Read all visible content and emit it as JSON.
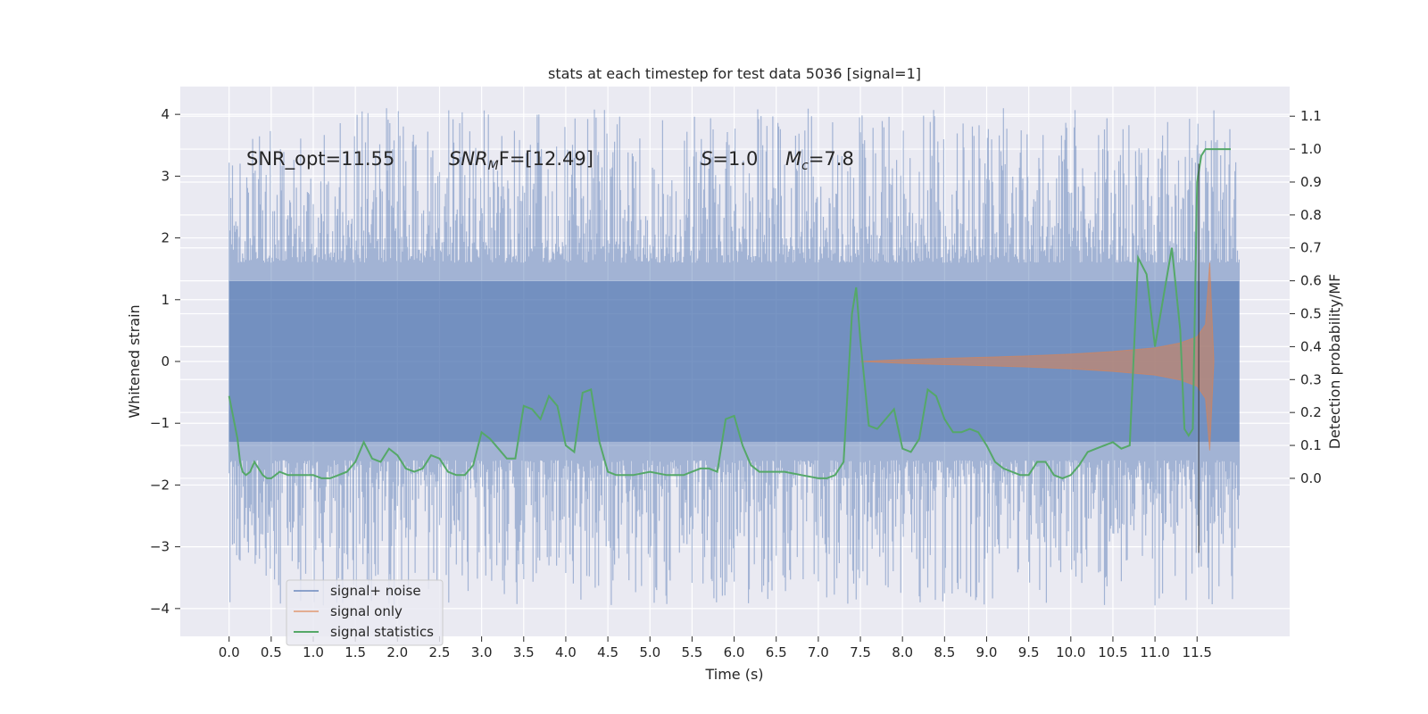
{
  "chart_data": {
    "type": "line",
    "title": "stats at each timestep for test data 5036 [signal=1]",
    "xlabel": "Time (s)",
    "ylabel": "Whitened strain",
    "ylabel_right": "Detection probability/MF",
    "xlim": [
      -0.58,
      12.6
    ],
    "ylim": [
      -4.45,
      4.45
    ],
    "ylim_right": [
      -0.48,
      1.19
    ],
    "x_ticks": [
      "0.0",
      "0.5",
      "1.0",
      "1.5",
      "2.0",
      "2.5",
      "3.0",
      "3.5",
      "4.0",
      "4.5",
      "5.0",
      "5.5",
      "6.0",
      "6.5",
      "7.0",
      "7.5",
      "8.0",
      "8.5",
      "9.0",
      "9.5",
      "10.0",
      "10.5",
      "11.0",
      "11.5"
    ],
    "y_ticks": [
      "4",
      "3",
      "2",
      "1",
      "0",
      "−1",
      "−2",
      "−3",
      "−4"
    ],
    "y_ticks_right": [
      "1.1",
      "1.0",
      "0.9",
      "0.8",
      "0.7",
      "0.6",
      "0.5",
      "0.4",
      "0.3",
      "0.2",
      "0.1",
      "0.0"
    ],
    "grid": true,
    "legend_position": "lower-left",
    "annotations": {
      "snr_opt": "SNR_opt=11.55",
      "snr_mf_sym": "SNR",
      "snr_mf_sub": "M",
      "snr_mf_rest": "F=[12.49]",
      "s_sym": "S",
      "s_rest": "=1.0",
      "mc_sym": "M",
      "mc_sub": "c",
      "mc_rest": "=7.8"
    },
    "series": [
      {
        "name": "signal+ noise",
        "color": "#4c72b0",
        "kind": "noise-band",
        "x_range": [
          0.0,
          12.0
        ],
        "core_amplitude": 1.3,
        "peak_min": -3.95,
        "peak_max": 4.1
      },
      {
        "name": "signal only",
        "color": "#dd8452",
        "kind": "chirp-envelope",
        "points": [
          [
            7.5,
            0.0
          ],
          [
            8.0,
            0.03
          ],
          [
            8.5,
            0.05
          ],
          [
            9.0,
            0.07
          ],
          [
            9.5,
            0.09
          ],
          [
            10.0,
            0.12
          ],
          [
            10.5,
            0.16
          ],
          [
            11.0,
            0.22
          ],
          [
            11.3,
            0.3
          ],
          [
            11.5,
            0.4
          ],
          [
            11.6,
            0.6
          ],
          [
            11.65,
            1.6
          ],
          [
            11.7,
            0.0
          ]
        ]
      },
      {
        "name": "signal statistics",
        "color": "#55a868",
        "kind": "line",
        "x": [
          0.0,
          0.1,
          0.13,
          0.16,
          0.2,
          0.25,
          0.3,
          0.35,
          0.4,
          0.45,
          0.5,
          0.55,
          0.6,
          0.7,
          0.8,
          0.9,
          1.0,
          1.1,
          1.2,
          1.3,
          1.4,
          1.5,
          1.6,
          1.7,
          1.8,
          1.9,
          2.0,
          2.1,
          2.2,
          2.3,
          2.4,
          2.5,
          2.6,
          2.7,
          2.8,
          2.9,
          3.0,
          3.1,
          3.2,
          3.3,
          3.4,
          3.5,
          3.6,
          3.7,
          3.8,
          3.9,
          4.0,
          4.1,
          4.2,
          4.3,
          4.4,
          4.5,
          4.6,
          4.7,
          4.8,
          5.0,
          5.2,
          5.4,
          5.5,
          5.6,
          5.7,
          5.8,
          5.9,
          6.0,
          6.1,
          6.2,
          6.3,
          6.4,
          6.6,
          6.8,
          7.0,
          7.1,
          7.2,
          7.3,
          7.4,
          7.45,
          7.5,
          7.6,
          7.7,
          7.8,
          7.9,
          8.0,
          8.1,
          8.2,
          8.3,
          8.4,
          8.5,
          8.6,
          8.7,
          8.8,
          8.9,
          9.0,
          9.1,
          9.2,
          9.4,
          9.5,
          9.6,
          9.7,
          9.8,
          9.9,
          10.0,
          10.1,
          10.2,
          10.3,
          10.4,
          10.5,
          10.6,
          10.7,
          10.8,
          10.9,
          11.0,
          11.1,
          11.2,
          11.3,
          11.35,
          11.4,
          11.45,
          11.5,
          11.55,
          11.6,
          11.7,
          11.8,
          11.9
        ],
        "y": [
          0.25,
          0.12,
          0.05,
          0.02,
          0.01,
          0.02,
          0.05,
          0.03,
          0.01,
          0.0,
          0.0,
          0.01,
          0.02,
          0.01,
          0.01,
          0.01,
          0.01,
          0.0,
          0.0,
          0.01,
          0.02,
          0.05,
          0.11,
          0.06,
          0.05,
          0.09,
          0.07,
          0.03,
          0.02,
          0.03,
          0.07,
          0.06,
          0.02,
          0.01,
          0.01,
          0.04,
          0.14,
          0.12,
          0.09,
          0.06,
          0.06,
          0.22,
          0.21,
          0.18,
          0.25,
          0.22,
          0.1,
          0.08,
          0.26,
          0.27,
          0.11,
          0.02,
          0.01,
          0.01,
          0.01,
          0.02,
          0.01,
          0.01,
          0.02,
          0.03,
          0.03,
          0.02,
          0.18,
          0.19,
          0.1,
          0.04,
          0.02,
          0.02,
          0.02,
          0.01,
          0.0,
          0.0,
          0.01,
          0.05,
          0.5,
          0.58,
          0.42,
          0.16,
          0.15,
          0.18,
          0.21,
          0.09,
          0.08,
          0.12,
          0.27,
          0.25,
          0.18,
          0.14,
          0.14,
          0.15,
          0.14,
          0.1,
          0.05,
          0.03,
          0.01,
          0.01,
          0.05,
          0.05,
          0.01,
          0.0,
          0.01,
          0.04,
          0.08,
          0.09,
          0.1,
          0.11,
          0.09,
          0.1,
          0.67,
          0.62,
          0.4,
          0.55,
          0.7,
          0.45,
          0.15,
          0.13,
          0.15,
          0.9,
          0.98,
          1.0,
          1.0,
          1.0,
          1.0
        ]
      }
    ]
  }
}
